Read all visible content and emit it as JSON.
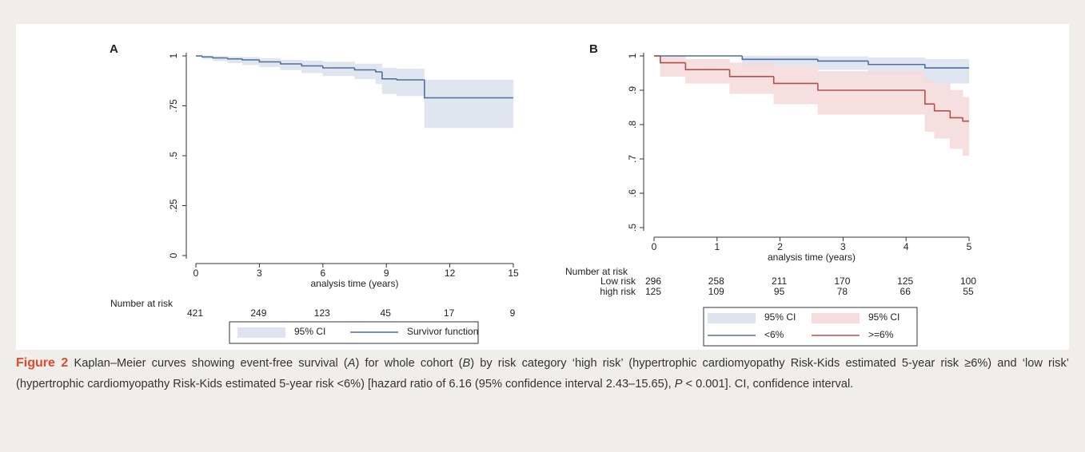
{
  "chart_data": [
    {
      "type": "step",
      "panel_label": "A",
      "xlabel": "analysis time (years)",
      "xlim": [
        0,
        15
      ],
      "xticks": [
        0,
        3,
        6,
        9,
        12,
        15
      ],
      "ylim": [
        0,
        1
      ],
      "yticks": [
        0,
        {
          "value": 0.25,
          "label": ".25"
        },
        {
          "value": 0.5,
          "label": ".5"
        },
        {
          "value": 0.75,
          "label": ".75"
        },
        1
      ],
      "bands": [
        {
          "name": "95% CI",
          "color": "#dde4ee",
          "x": [
            0,
            0.3,
            0.8,
            1.5,
            2.2,
            3,
            4,
            5,
            6,
            7.5,
            8.5,
            8.8,
            9.5,
            10.8,
            15
          ],
          "lower": [
            1,
            0.985,
            0.975,
            0.965,
            0.955,
            0.945,
            0.93,
            0.915,
            0.9,
            0.885,
            0.86,
            0.81,
            0.8,
            0.64,
            0.64
          ],
          "upper": [
            1,
            1,
            0.998,
            0.995,
            0.993,
            0.988,
            0.98,
            0.975,
            0.97,
            0.96,
            0.96,
            0.94,
            0.935,
            0.88,
            0.88
          ]
        }
      ],
      "series": [
        {
          "name": "Survivor function",
          "color": "#4f6e9c",
          "x": [
            0,
            0.3,
            0.8,
            1.5,
            2.2,
            3,
            4,
            5,
            6,
            7.5,
            8.5,
            8.8,
            9.5,
            10.8,
            15
          ],
          "values": [
            1,
            0.995,
            0.99,
            0.985,
            0.98,
            0.97,
            0.96,
            0.95,
            0.94,
            0.93,
            0.92,
            0.885,
            0.88,
            0.79,
            0.79
          ]
        }
      ],
      "risk_table": {
        "title": "Number at risk",
        "rows": [
          {
            "values": [
              421,
              249,
              123,
              45,
              17,
              9
            ]
          }
        ]
      }
    },
    {
      "type": "step",
      "panel_label": "B",
      "xlabel": "analysis time (years)",
      "xlim": [
        0,
        5
      ],
      "xticks": [
        0,
        1,
        2,
        3,
        4,
        5
      ],
      "ylim": [
        0.5,
        1
      ],
      "yticks": [
        {
          "value": 0.5,
          "label": ".5"
        },
        {
          "value": 0.6,
          "label": ".6"
        },
        {
          "value": 0.7,
          "label": ".7"
        },
        {
          "value": 0.8,
          "label": ".8"
        },
        {
          "value": 0.9,
          "label": ".9"
        },
        1
      ],
      "bands": [
        {
          "name": "95% CI",
          "color": "#dde4ee",
          "x": [
            0,
            1.4,
            2.6,
            3.4,
            4.3,
            5
          ],
          "lower": [
            1,
            0.97,
            0.96,
            0.945,
            0.92,
            0.92
          ],
          "upper": [
            1,
            1,
            0.998,
            0.995,
            0.99,
            0.99
          ]
        },
        {
          "name": "95% CI",
          "color": "#f6dcdc",
          "x": [
            0,
            0.1,
            0.5,
            1.2,
            1.9,
            2.6,
            4.3,
            4.45,
            4.7,
            4.9,
            5
          ],
          "lower": [
            1,
            0.94,
            0.92,
            0.89,
            0.86,
            0.83,
            0.78,
            0.76,
            0.73,
            0.71,
            0.71
          ],
          "upper": [
            1,
            1,
            0.99,
            0.98,
            0.97,
            0.955,
            0.93,
            0.92,
            0.9,
            0.88,
            0.88
          ]
        }
      ],
      "series": [
        {
          "name": "<6%",
          "color": "#4f6e9c",
          "x": [
            0,
            1.4,
            2.6,
            3.4,
            4.3,
            5
          ],
          "values": [
            1,
            0.99,
            0.985,
            0.975,
            0.965,
            0.965
          ]
        },
        {
          "name": ">=6%",
          "color": "#b2504e",
          "x": [
            0,
            0.1,
            0.5,
            1.2,
            1.9,
            2.6,
            4.3,
            4.45,
            4.7,
            4.9,
            5
          ],
          "values": [
            1,
            0.98,
            0.96,
            0.94,
            0.92,
            0.9,
            0.86,
            0.84,
            0.82,
            0.81,
            0.81
          ]
        }
      ],
      "risk_table": {
        "title": "Number at risk",
        "rows": [
          {
            "name": "Low risk",
            "values": [
              296,
              258,
              211,
              170,
              125,
              100
            ]
          },
          {
            "name": "high risk",
            "values": [
              125,
              109,
              95,
              78,
              66,
              55
            ]
          }
        ]
      }
    }
  ],
  "caption": {
    "label": "Figure 2",
    "parts": [
      "Kaplan–Meier curves showing event-free survival (",
      "A",
      ") for whole cohort (",
      "B",
      ") by risk category ‘high risk’ (hypertrophic cardiomyopathy Risk-Kids estimated 5-year risk ≥6%) and ‘low risk’ (hypertrophic cardiomyopathy Risk-Kids estimated 5-year risk <6%) [hazard ratio of 6.16 (95% confidence interval 2.43–15.65), ",
      "P",
      " < 0.001]. CI, confidence interval."
    ]
  }
}
